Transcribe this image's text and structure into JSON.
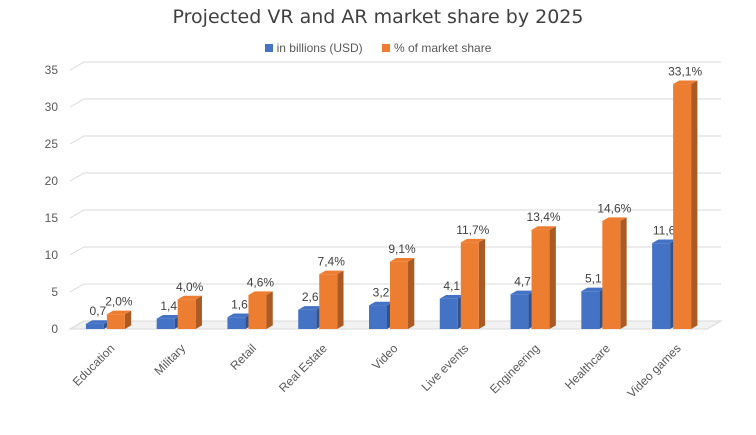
{
  "chart_data": {
    "type": "bar",
    "title": "Projected VR and AR market share by 2025",
    "categories": [
      "Education",
      "Military",
      "Retail",
      "Real Estate",
      "Video",
      "Live events",
      "Engineering",
      "Healthcare",
      "Video games"
    ],
    "series": [
      {
        "name": "in billions (USD)",
        "color": "#4472C4",
        "values": [
          0.7,
          1.4,
          1.6,
          2.6,
          3.2,
          4.1,
          4.7,
          5.1,
          11.6
        ],
        "labels": [
          "0,7",
          "1,4",
          "1,6",
          "2,6",
          "3,2",
          "4,1",
          "4,7",
          "5,1",
          "11,6"
        ]
      },
      {
        "name": "% of market share",
        "color": "#ED7D31",
        "values": [
          2.0,
          4.0,
          4.6,
          7.4,
          9.1,
          11.7,
          13.4,
          14.6,
          33.1
        ],
        "labels": [
          "2,0%",
          "4,0%",
          "4,6%",
          "7,4%",
          "9,1%",
          "11,7%",
          "13,4%",
          "14,6%",
          "33,1%"
        ]
      }
    ],
    "ylim": [
      0,
      35
    ],
    "yticks": [
      "0",
      "5",
      "10",
      "15",
      "20",
      "25",
      "30",
      "35"
    ],
    "grid": true,
    "legend": "top",
    "style": "3d-column"
  }
}
